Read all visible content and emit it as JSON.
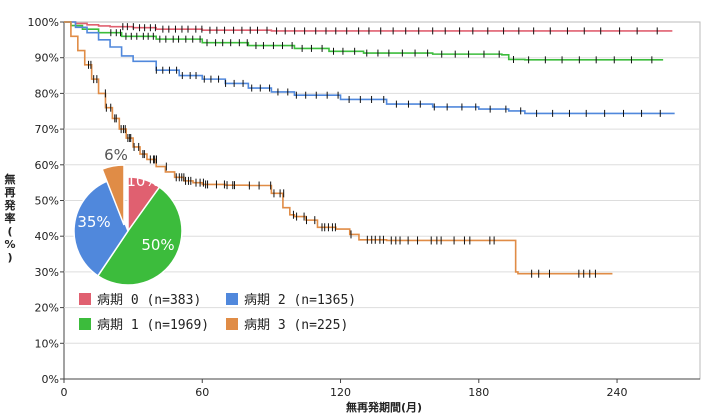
{
  "chart_data": {
    "type": "line",
    "chart_kind": "kaplan-meier step curve with censor ticks",
    "xlabel": "無再発期間(月)",
    "ylabel": "無再発率(%)",
    "xlim": [
      0,
      276
    ],
    "ylim": [
      0,
      100
    ],
    "xticks": [
      0,
      60,
      120,
      180,
      240
    ],
    "yticks": [
      "0%",
      "10%",
      "20%",
      "30%",
      "40%",
      "50%",
      "60%",
      "70%",
      "80%",
      "90%",
      "100%"
    ],
    "grid": "horizontal",
    "legend_position": "bottom-left",
    "series": [
      {
        "name": "病期 0 (n=383)",
        "color": "#e06070",
        "x": [
          0,
          5,
          10,
          15,
          20,
          30,
          40,
          60,
          90,
          130,
          200,
          264
        ],
        "y": [
          100,
          99.6,
          99.2,
          98.9,
          98.7,
          98.4,
          98.0,
          97.7,
          97.5,
          97.5,
          97.5,
          97.5
        ],
        "censor_range": [
          25,
          264
        ]
      },
      {
        "name": "病期 1 (n=1969)",
        "color": "#3cbc3c",
        "x": [
          0,
          3,
          8,
          15,
          25,
          40,
          60,
          80,
          100,
          115,
          130,
          160,
          190,
          193,
          200,
          260
        ],
        "y": [
          100,
          99.0,
          98.0,
          97.0,
          96.0,
          95.2,
          94.2,
          93.4,
          92.6,
          91.8,
          91.3,
          91.0,
          90.8,
          89.5,
          89.4,
          89.4
        ],
        "censor_range": [
          20,
          260
        ]
      },
      {
        "name": "病期 2 (n=1365)",
        "color": "#5088dc",
        "x": [
          0,
          5,
          10,
          15,
          20,
          25,
          30,
          40,
          50,
          60,
          70,
          80,
          90,
          100,
          120,
          140,
          160,
          180,
          193,
          200,
          265
        ],
        "y": [
          100,
          98.5,
          97.0,
          95.0,
          93.0,
          90.5,
          89.0,
          86.5,
          85.0,
          84.0,
          82.8,
          81.5,
          80.4,
          79.5,
          78.3,
          77.0,
          76.2,
          75.6,
          75.1,
          74.4,
          74.4
        ],
        "censor_range": [
          40,
          265
        ]
      },
      {
        "name": "病期 3 (n=225)",
        "color": "#e08c46",
        "x": [
          0,
          3,
          6,
          9,
          12,
          15,
          18,
          21,
          24,
          27,
          30,
          33,
          36,
          40,
          44,
          48,
          52,
          56,
          60,
          70,
          80,
          90,
          95,
          98,
          100,
          105,
          110,
          118,
          124,
          128,
          140,
          160,
          180,
          195,
          196,
          197,
          200,
          238
        ],
        "y": [
          100,
          96.0,
          92.0,
          88.0,
          84.0,
          80.0,
          76.0,
          73.0,
          70.0,
          67.5,
          65.0,
          63.0,
          61.5,
          59.5,
          58.0,
          56.5,
          55.5,
          55.0,
          54.5,
          54.3,
          54.2,
          52.0,
          48.0,
          46.0,
          45.5,
          44.5,
          42.5,
          42.0,
          40.5,
          39.0,
          38.8,
          38.8,
          38.8,
          38.8,
          30.0,
          29.5,
          29.5,
          29.5
        ],
        "censor_range": [
          10,
          238
        ]
      }
    ],
    "pie": {
      "labels": [
        "10%",
        "50%",
        "35%",
        "6%"
      ],
      "values": [
        10,
        50,
        35,
        6
      ],
      "colors": [
        "#e06070",
        "#3cbc3c",
        "#5088dc",
        "#e08c46"
      ]
    }
  }
}
